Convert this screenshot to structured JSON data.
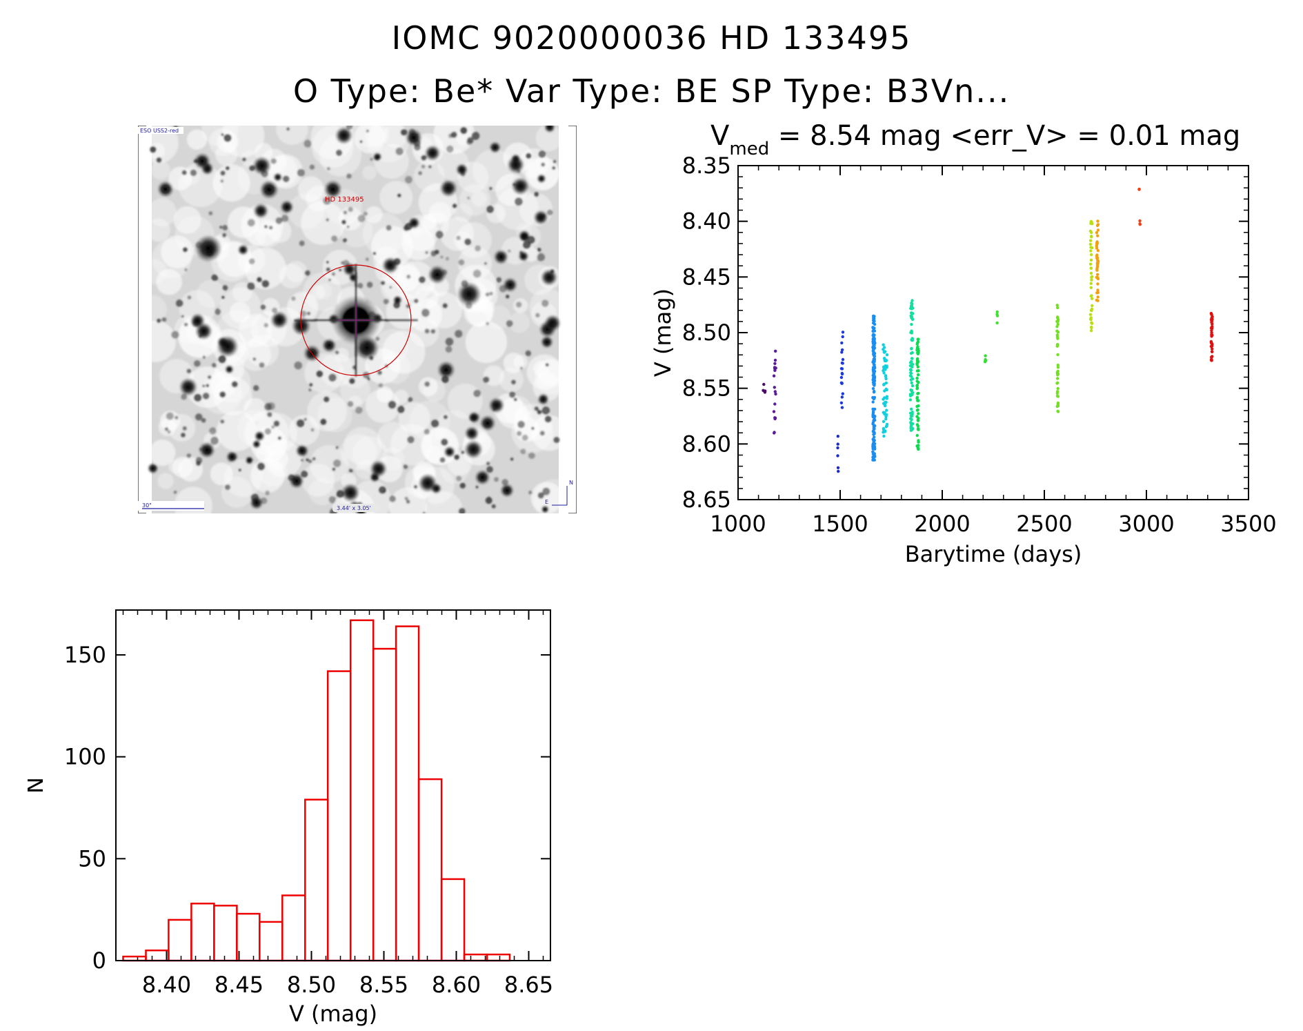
{
  "header": {
    "title_line1": "IOMC 9020000036    HD 133495",
    "title_line2": "O Type: Be*  Var Type: BE  SP Type: B3Vn..."
  },
  "finding_chart": {
    "survey_label": "ESO USS2-red",
    "object_label": "HD 133495",
    "scale_label": "30\"",
    "fov_label": "3.44' x 3.05'",
    "compass_n": "N",
    "compass_e": "E",
    "circle_color": "#cc0000",
    "label_color": "#1a1aa0"
  },
  "chart_data": [
    {
      "type": "scatter",
      "title_main": "V",
      "title_sub": "med",
      "title_rest": " = 8.54 mag <err_V> = 0.01 mag",
      "xlabel": "Barytime (days)",
      "ylabel": "V (mag)",
      "xlim": [
        1000,
        3500
      ],
      "ylim": [
        8.65,
        8.35
      ],
      "y_inverted": true,
      "xticks": [
        1000,
        1500,
        2000,
        2500,
        3000,
        3500
      ],
      "xtick_labels": [
        "1000",
        "1500",
        "2000",
        "2500",
        "3000",
        "3500"
      ],
      "yticks": [
        8.35,
        8.4,
        8.45,
        8.5,
        8.55,
        8.6,
        8.65
      ],
      "ytick_labels": [
        "8.35",
        "8.40",
        "8.45",
        "8.50",
        "8.55",
        "8.60",
        "8.65"
      ],
      "color_scale": "time-coded rainbow (purple to red)",
      "clusters": [
        {
          "x": 1130,
          "xspread": 18,
          "ymin": 8.545,
          "ymax": 8.555,
          "n": 6,
          "color": "#4a0a6a"
        },
        {
          "x": 1180,
          "xspread": 10,
          "ymin": 8.515,
          "ymax": 8.6,
          "n": 18,
          "color": "#5a1a9a"
        },
        {
          "x": 1490,
          "xspread": 6,
          "ymin": 8.58,
          "ymax": 8.635,
          "n": 6,
          "color": "#1a2ad0"
        },
        {
          "x": 1510,
          "xspread": 8,
          "ymin": 8.495,
          "ymax": 8.57,
          "n": 20,
          "color": "#1a3ae0"
        },
        {
          "x": 1665,
          "xspread": 10,
          "ymin": 8.485,
          "ymax": 8.615,
          "n": 160,
          "color": "#1a8ef0"
        },
        {
          "x": 1720,
          "xspread": 20,
          "ymin": 8.51,
          "ymax": 8.595,
          "n": 60,
          "color": "#10d0e0"
        },
        {
          "x": 1850,
          "xspread": 12,
          "ymin": 8.47,
          "ymax": 8.59,
          "n": 80,
          "color": "#10e0a0"
        },
        {
          "x": 1880,
          "xspread": 8,
          "ymin": 8.505,
          "ymax": 8.607,
          "n": 70,
          "color": "#10d850"
        },
        {
          "x": 2210,
          "xspread": 6,
          "ymin": 8.518,
          "ymax": 8.527,
          "n": 5,
          "color": "#30e030"
        },
        {
          "x": 2270,
          "xspread": 4,
          "ymin": 8.48,
          "ymax": 8.495,
          "n": 4,
          "color": "#40e030"
        },
        {
          "x": 2565,
          "xspread": 6,
          "ymin": 8.475,
          "ymax": 8.573,
          "n": 40,
          "color": "#70e020"
        },
        {
          "x": 2730,
          "xspread": 8,
          "ymin": 8.4,
          "ymax": 8.505,
          "n": 40,
          "color": "#b8e010"
        },
        {
          "x": 2760,
          "xspread": 8,
          "ymin": 8.398,
          "ymax": 8.475,
          "n": 40,
          "color": "#f0a010"
        },
        {
          "x": 2965,
          "xspread": 2,
          "ymin": 8.371,
          "ymax": 8.373,
          "n": 2,
          "color": "#f04010"
        },
        {
          "x": 2968,
          "xspread": 2,
          "ymin": 8.399,
          "ymax": 8.403,
          "n": 3,
          "color": "#f04010"
        },
        {
          "x": 3320,
          "xspread": 6,
          "ymin": 8.479,
          "ymax": 8.525,
          "n": 40,
          "color": "#e01010"
        }
      ]
    },
    {
      "type": "bar",
      "subtype": "histogram",
      "xlabel": "V (mag)",
      "ylabel": "N",
      "xlim": [
        8.365,
        8.665
      ],
      "ylim": [
        0,
        172
      ],
      "xticks": [
        8.4,
        8.45,
        8.5,
        8.55,
        8.6,
        8.65
      ],
      "xtick_labels": [
        "8.40",
        "8.45",
        "8.50",
        "8.55",
        "8.60",
        "8.65"
      ],
      "yticks": [
        0,
        50,
        100,
        150
      ],
      "ytick_labels": [
        "0",
        "50",
        "100",
        "150"
      ],
      "bin_start": 8.37,
      "bin_width": 0.0157,
      "values": [
        2,
        5,
        20,
        28,
        27,
        23,
        19,
        32,
        79,
        142,
        167,
        153,
        164,
        89,
        40,
        3,
        3
      ],
      "bar_color": "#ee0000"
    }
  ]
}
